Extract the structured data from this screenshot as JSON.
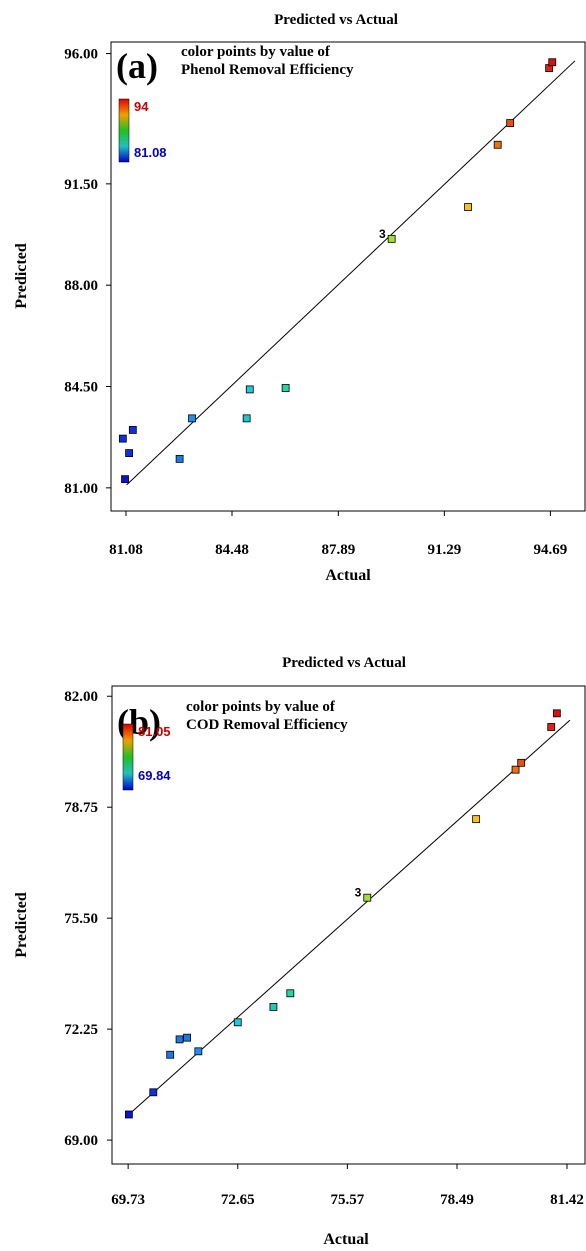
{
  "chart_data": [
    {
      "type": "scatter",
      "title": "Predicted vs Actual",
      "panel_label": "(a)",
      "caption_line1": "color points by value of",
      "caption_line2": "Phenol Removal Efficiency",
      "xlabel": "Actual",
      "ylabel": "Predicted",
      "xlim": [
        80.6,
        95.8
      ],
      "ylim": [
        80.2,
        96.4
      ],
      "xticks": [
        "81.08",
        "84.48",
        "87.89",
        "91.29",
        "94.69"
      ],
      "yticks": [
        "81.00",
        "84.50",
        "88.00",
        "91.50",
        "96.00"
      ],
      "color_scale": {
        "max_label": "94",
        "min_label": "81.08",
        "max_color": "#cc0000",
        "min_color": "#0000cc"
      },
      "fit_line": {
        "x": [
          81.1,
          95.9
        ],
        "y": [
          81.1,
          95.75
        ]
      },
      "replicate_label": {
        "text": "3",
        "x": 89.6,
        "y": 89.6
      },
      "points": [
        {
          "x": 80.98,
          "y": 82.7,
          "color": "#1030e0"
        },
        {
          "x": 81.18,
          "y": 82.2,
          "color": "#1030e0"
        },
        {
          "x": 81.3,
          "y": 83.0,
          "color": "#1030e0"
        },
        {
          "x": 81.05,
          "y": 81.3,
          "color": "#0a14c8"
        },
        {
          "x": 82.8,
          "y": 82.0,
          "color": "#1e78e6"
        },
        {
          "x": 83.2,
          "y": 83.4,
          "color": "#1e8ef0"
        },
        {
          "x": 84.95,
          "y": 83.4,
          "color": "#1ec8c8"
        },
        {
          "x": 85.05,
          "y": 84.4,
          "color": "#1ecadc"
        },
        {
          "x": 86.2,
          "y": 84.45,
          "color": "#22d8a0"
        },
        {
          "x": 89.6,
          "y": 89.6,
          "color": "#a0e030"
        },
        {
          "x": 92.05,
          "y": 90.7,
          "color": "#f5c020"
        },
        {
          "x": 93.0,
          "y": 92.85,
          "color": "#f07010"
        },
        {
          "x": 93.4,
          "y": 93.6,
          "color": "#e85010"
        },
        {
          "x": 94.65,
          "y": 95.5,
          "color": "#e02010"
        },
        {
          "x": 94.75,
          "y": 95.7,
          "color": "#d81010"
        }
      ]
    },
    {
      "type": "scatter",
      "title": "Predicted vs Actual",
      "panel_label": "(b)",
      "caption_line1": "color points by value of",
      "caption_line2": "COD Removal Efficiency",
      "xlabel": "Actual",
      "ylabel": "Predicted",
      "xlim": [
        69.3,
        81.9
      ],
      "ylim": [
        68.3,
        82.3
      ],
      "xticks": [
        "69.73",
        "72.65",
        "75.57",
        "78.49",
        "81.42"
      ],
      "yticks": [
        "69.00",
        "72.25",
        "75.50",
        "78.75",
        "82.00"
      ],
      "color_scale": {
        "max_label": "81.05",
        "min_label": "69.84",
        "max_color": "#cc0000",
        "min_color": "#0000cc"
      },
      "fit_line": {
        "x": [
          69.75,
          81.5
        ],
        "y": [
          69.75,
          81.3
        ]
      },
      "replicate_label": {
        "text": "3",
        "x": 76.1,
        "y": 76.1
      },
      "points": [
        {
          "x": 69.75,
          "y": 69.75,
          "color": "#0a14c8"
        },
        {
          "x": 70.4,
          "y": 70.4,
          "color": "#1030e0"
        },
        {
          "x": 70.85,
          "y": 71.5,
          "color": "#1e78e6"
        },
        {
          "x": 71.1,
          "y": 71.95,
          "color": "#1e78e6"
        },
        {
          "x": 71.3,
          "y": 72.0,
          "color": "#1e78e6"
        },
        {
          "x": 71.6,
          "y": 71.6,
          "color": "#1e8ef0"
        },
        {
          "x": 72.65,
          "y": 72.45,
          "color": "#1ec8e6"
        },
        {
          "x": 73.6,
          "y": 72.9,
          "color": "#1ecab4"
        },
        {
          "x": 74.05,
          "y": 73.3,
          "color": "#22d8a0"
        },
        {
          "x": 76.1,
          "y": 76.1,
          "color": "#a0e030"
        },
        {
          "x": 79.0,
          "y": 78.4,
          "color": "#f5c020"
        },
        {
          "x": 80.05,
          "y": 79.85,
          "color": "#f07010"
        },
        {
          "x": 80.2,
          "y": 80.05,
          "color": "#e85010"
        },
        {
          "x": 81.0,
          "y": 81.1,
          "color": "#e02010"
        },
        {
          "x": 81.15,
          "y": 81.5,
          "color": "#d81010"
        }
      ]
    }
  ]
}
